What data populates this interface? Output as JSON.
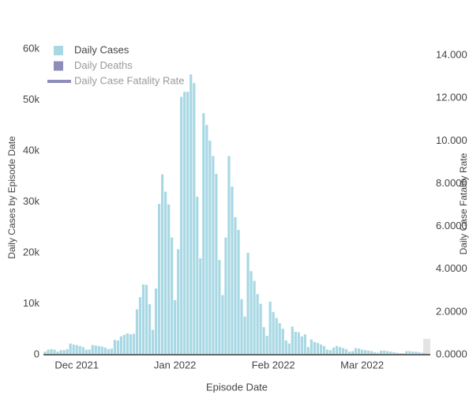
{
  "chart_data": {
    "type": "bar",
    "x_label": "Episode Date",
    "y_label": "Daily Cases by Episode Date",
    "y2_label": "Daily Case Fatality Rate",
    "categories": [
      null,
      null,
      null,
      null,
      null,
      null,
      null,
      null,
      null,
      null,
      "Dec 2021",
      null,
      null,
      null,
      null,
      null,
      null,
      null,
      null,
      null,
      null,
      null,
      null,
      null,
      null,
      null,
      null,
      null,
      null,
      null,
      null,
      null,
      null,
      null,
      null,
      null,
      null,
      null,
      null,
      null,
      null,
      "Jan 2022",
      null,
      null,
      null,
      null,
      null,
      null,
      null,
      null,
      null,
      null,
      null,
      null,
      null,
      null,
      null,
      null,
      null,
      null,
      null,
      null,
      null,
      null,
      null,
      null,
      null,
      null,
      null,
      null,
      null,
      null,
      "Feb 2022",
      null,
      null,
      null,
      null,
      null,
      null,
      null,
      null,
      null,
      null,
      null,
      null,
      null,
      null,
      null,
      null,
      null,
      null,
      null,
      null,
      null,
      null,
      null,
      null,
      null,
      null,
      null,
      "Mar 2022",
      null,
      null,
      null,
      null,
      null,
      null,
      null,
      null,
      null,
      null,
      null,
      null,
      null,
      null,
      null,
      null,
      null,
      null,
      null,
      null,
      null
    ],
    "series": [
      {
        "name": "Daily Cases",
        "color": "#a8d8e4",
        "visible": true,
        "values": [
          600,
          1000,
          1100,
          1000,
          600,
          900,
          900,
          1100,
          2200,
          2000,
          1900,
          1700,
          1500,
          1000,
          1000,
          1900,
          1800,
          1700,
          1600,
          1400,
          1100,
          1200,
          2900,
          2800,
          3600,
          3900,
          4200,
          4000,
          4100,
          8900,
          11300,
          13800,
          13700,
          9900,
          4900,
          13000,
          29600,
          35400,
          32000,
          29500,
          23000,
          10700,
          20700,
          50600,
          51600,
          51600,
          55000,
          53300,
          31000,
          18900,
          47400,
          45100,
          42000,
          39000,
          35500,
          18600,
          11700,
          23000,
          39000,
          33000,
          27000,
          24500,
          10900,
          7500,
          20000,
          16400,
          14500,
          11900,
          10000,
          5400,
          3700,
          10400,
          8400,
          7200,
          6200,
          5100,
          2800,
          2200,
          5500,
          4500,
          4400,
          3600,
          4000,
          1500,
          3000,
          2500,
          2300,
          2000,
          1700,
          1000,
          900,
          1400,
          1700,
          1500,
          1300,
          1100,
          600,
          700,
          1300,
          1200,
          1000,
          900,
          800,
          700,
          500,
          400,
          800,
          800,
          700,
          600,
          500,
          400,
          300,
          300,
          700,
          700,
          600,
          600,
          500,
          400,
          300,
          200
        ]
      },
      {
        "name": "Daily Deaths",
        "color": "#8e8cb8",
        "visible": false,
        "marker": "square"
      },
      {
        "name": "Daily Case Fatality Rate",
        "color": "#8e8cb8",
        "visible": false,
        "marker": "line",
        "axis": "y2"
      }
    ],
    "ylim": [
      0,
      60000
    ],
    "yticks": [
      0,
      {
        "value": 10000,
        "label": "10k"
      },
      {
        "value": 20000,
        "label": "20k"
      },
      {
        "value": 30000,
        "label": "30k"
      },
      {
        "value": 40000,
        "label": "40k"
      },
      {
        "value": 50000,
        "label": "50k"
      },
      {
        "value": 60000,
        "label": "60k"
      }
    ],
    "y2lim": [
      0,
      14.3
    ],
    "y2ticks": [
      {
        "value": 0,
        "label": "0.0000"
      },
      {
        "value": 2,
        "label": "2.0000"
      },
      {
        "value": 4,
        "label": "4.0000"
      },
      {
        "value": 6,
        "label": "6.0000"
      },
      {
        "value": 8,
        "label": "8.0000"
      },
      {
        "value": 10,
        "label": "10.000"
      },
      {
        "value": 12,
        "label": "12.000"
      },
      {
        "value": 14,
        "label": "14.000"
      }
    ],
    "grid": false
  }
}
